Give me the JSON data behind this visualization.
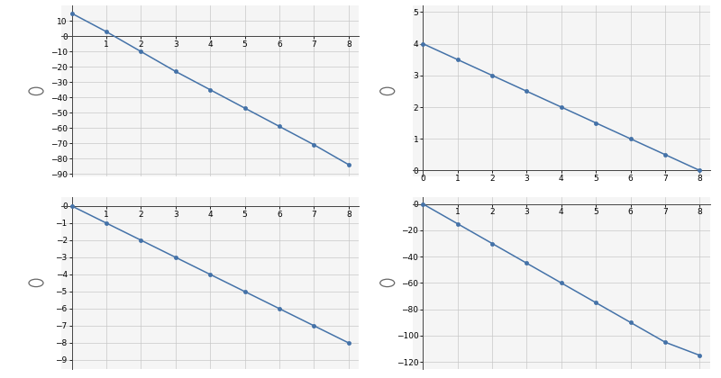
{
  "graph1": {
    "x": [
      0,
      1,
      2,
      3,
      4,
      5,
      6,
      7,
      8
    ],
    "y": [
      15,
      3,
      -10,
      -23,
      -35,
      -47,
      -59,
      -71,
      -84
    ],
    "xlim": [
      -0.3,
      8.3
    ],
    "ylim": [
      -92,
      20
    ],
    "yticks": [
      10,
      0,
      -10,
      -20,
      -30,
      -40,
      -50,
      -60,
      -70,
      -80,
      -90
    ],
    "xticks": [
      1,
      2,
      3,
      4,
      5,
      6,
      7,
      8
    ]
  },
  "graph2": {
    "x": [
      0,
      1,
      2,
      3,
      4,
      5,
      6,
      7,
      8
    ],
    "y": [
      4,
      3.5,
      3,
      2.5,
      2,
      1.5,
      1,
      0.5,
      0
    ],
    "xlim": [
      -0.3,
      8.3
    ],
    "ylim": [
      -0.2,
      5.2
    ],
    "yticks": [
      0,
      1,
      2,
      3,
      4,
      5
    ],
    "xticks": [
      0,
      1,
      2,
      3,
      4,
      5,
      6,
      7,
      8
    ]
  },
  "graph3": {
    "x": [
      0,
      1,
      2,
      3,
      4,
      5,
      6,
      7,
      8
    ],
    "y": [
      0,
      -1,
      -2,
      -3,
      -4,
      -5,
      -6,
      -7,
      -8
    ],
    "xlim": [
      -0.3,
      8.3
    ],
    "ylim": [
      -9.5,
      0.5
    ],
    "yticks": [
      0,
      -1,
      -2,
      -3,
      -4,
      -5,
      -6,
      -7,
      -8,
      -9
    ],
    "xticks": [
      1,
      2,
      3,
      4,
      5,
      6,
      7,
      8
    ]
  },
  "graph4": {
    "x": [
      0,
      1,
      2,
      3,
      4,
      5,
      6,
      7,
      8
    ],
    "y": [
      0,
      -15,
      -30,
      -45,
      -60,
      -75,
      -90,
      -105,
      -115
    ],
    "xlim": [
      -0.3,
      8.3
    ],
    "ylim": [
      -125,
      5
    ],
    "yticks": [
      0,
      -20,
      -40,
      -60,
      -80,
      -100,
      -120
    ],
    "xticks": [
      1,
      2,
      3,
      4,
      5,
      6,
      7,
      8
    ]
  },
  "line_color": "#4472a8",
  "marker_color": "#4472a8",
  "grid_color": "#c8c8c8",
  "bg_color": "#f5f5f5",
  "page_bg": "#ffffff",
  "radio_color": "#666666",
  "tick_fontsize": 6.5,
  "linewidth": 1.1,
  "markersize": 3.0
}
